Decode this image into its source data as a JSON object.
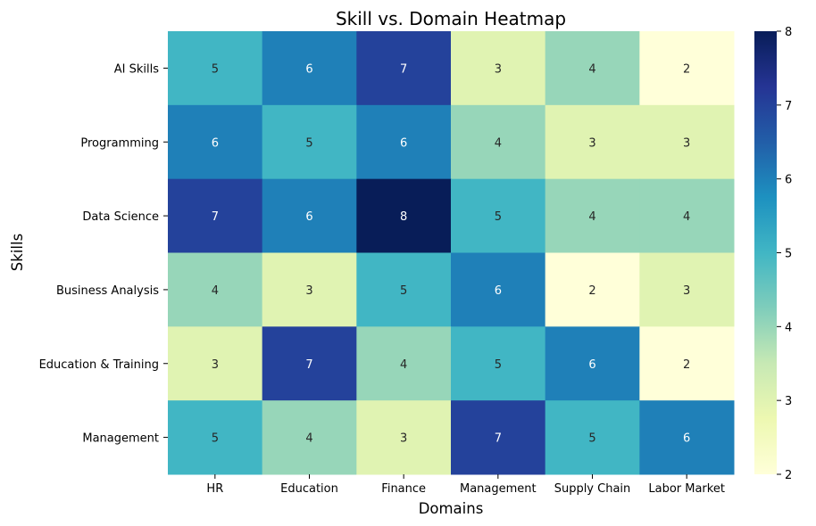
{
  "chart_data": {
    "type": "heatmap",
    "title": "Skill vs. Domain Heatmap",
    "xlabel": "Domains",
    "ylabel": "Skills",
    "x_categories": [
      "HR",
      "Education",
      "Finance",
      "Management",
      "Supply Chain",
      "Labor Market"
    ],
    "y_categories": [
      "AI Skills",
      "Programming",
      "Data Science",
      "Business Analysis",
      "Education & Training",
      "Management"
    ],
    "values": [
      [
        5,
        6,
        7,
        3,
        4,
        2
      ],
      [
        6,
        5,
        6,
        4,
        3,
        3
      ],
      [
        7,
        6,
        8,
        5,
        4,
        4
      ],
      [
        4,
        3,
        5,
        6,
        2,
        3
      ],
      [
        3,
        7,
        4,
        5,
        6,
        2
      ],
      [
        5,
        4,
        3,
        7,
        5,
        6
      ]
    ],
    "colorbar": {
      "min": 2,
      "max": 8,
      "ticks": [
        2,
        3,
        4,
        5,
        6,
        7,
        8
      ]
    },
    "colormap": "YlGnBu",
    "annotations": true,
    "grid": false
  }
}
